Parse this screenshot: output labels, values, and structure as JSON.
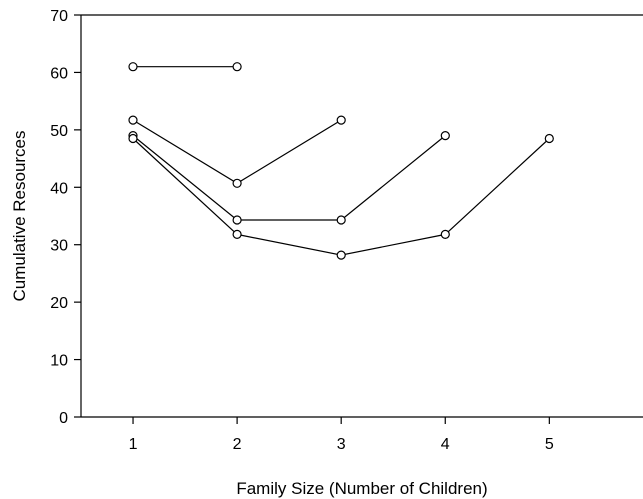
{
  "chart_data": {
    "type": "line",
    "title": "",
    "xlabel": "Family Size (Number of Children)",
    "ylabel": "Cumulative Resources",
    "xlim": [
      0.5,
      5.9
    ],
    "ylim": [
      0,
      70
    ],
    "x_ticks": [
      1,
      2,
      3,
      4,
      5
    ],
    "y_ticks": [
      0,
      10,
      20,
      30,
      40,
      50,
      60,
      70
    ],
    "grid": false,
    "legend": "none",
    "marker": "open-circle",
    "line_color": "#000000",
    "series": [
      {
        "x": [
          1,
          2
        ],
        "y": [
          61,
          61
        ]
      },
      {
        "x": [
          1,
          2,
          3
        ],
        "y": [
          51.7,
          40.7,
          51.7
        ]
      },
      {
        "x": [
          1,
          2,
          3,
          4
        ],
        "y": [
          49,
          34.3,
          34.3,
          49
        ]
      },
      {
        "x": [
          1,
          2,
          3,
          4,
          5
        ],
        "y": [
          48.5,
          31.8,
          28.2,
          31.8,
          48.5
        ]
      }
    ]
  }
}
